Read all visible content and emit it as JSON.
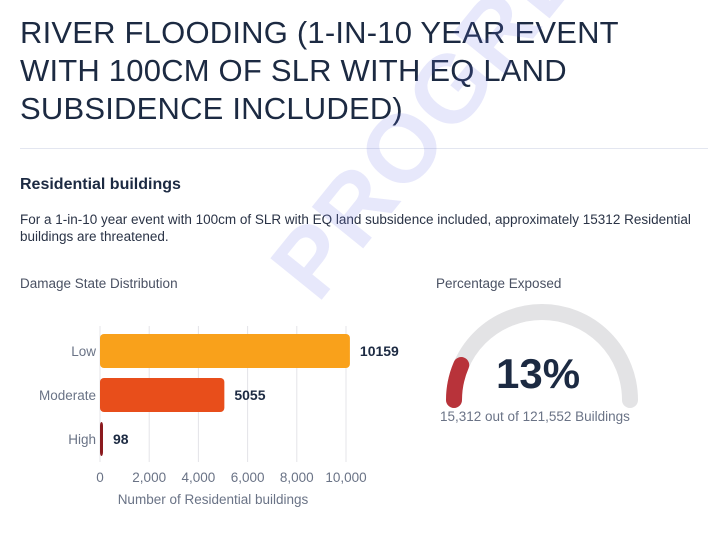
{
  "title": "RIVER FLOODING (1-IN-10 YEAR EVENT WITH 100CM OF SLR WITH EQ LAND SUBSIDENCE INCLUDED)",
  "section": {
    "heading": "Residential buildings",
    "summary": "For a  1-in-10 year event with 100cm of SLR with EQ land subsidence included, approximately 15312 Residential buildings are threatened."
  },
  "damage_chart_title": "Damage State Distribution",
  "exposure": {
    "title": "Percentage Exposed",
    "percent_label": "13%",
    "count_label": "15,312 out of 121,552 Buildings"
  },
  "watermark": "PROGRESS",
  "colors": {
    "low": "#f9a11b",
    "moderate": "#e84e1b",
    "high": "#8b1a1e",
    "gauge_track": "#e3e3e5",
    "gauge_fill": "#b8333a",
    "watermark": "#696ee6"
  },
  "chart_data": [
    {
      "type": "bar",
      "orientation": "horizontal",
      "title": "Damage State Distribution",
      "categories": [
        "Low",
        "Moderate",
        "High"
      ],
      "values": [
        10159,
        5055,
        98
      ],
      "value_labels": [
        "10159",
        "5055",
        "98"
      ],
      "xlabel": "Number of Residential buildings",
      "xlim": [
        0,
        10000
      ],
      "x_ticks": [
        "0",
        "2,000",
        "4,000",
        "6,000",
        "8,000",
        "10,000"
      ],
      "grid": true
    },
    {
      "type": "gauge",
      "title": "Percentage Exposed",
      "value": 0.13,
      "label": "13%",
      "caption": "15,312 out of 121,552 Buildings"
    }
  ]
}
